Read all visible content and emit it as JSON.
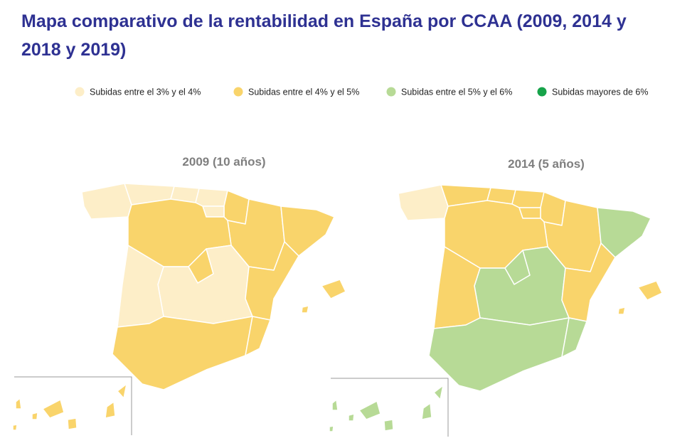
{
  "title": "Mapa comparativo de la rentabilidad en España por CCAA (2009, 2014 y 2018 y 2019)",
  "legend": [
    {
      "label": "Subidas entre el 3% y el 4%",
      "color": "#fdeec8"
    },
    {
      "label": "Subidas entre el 4% y el 5%",
      "color": "#f9d46b"
    },
    {
      "label": "Subidas entre el 5% y el 6%",
      "color": "#b7da96"
    },
    {
      "label": "Subidas mayores de 6%",
      "color": "#17a34a"
    }
  ],
  "maps": [
    {
      "title": "2009 (10 años)",
      "regions": [
        0,
        0,
        0,
        0,
        1,
        0,
        1,
        1,
        1,
        1,
        0,
        1,
        0,
        1,
        1,
        1,
        1
      ]
    },
    {
      "title": "2014 (5 años)",
      "regions": [
        0,
        1,
        1,
        1,
        1,
        1,
        1,
        2,
        1,
        2,
        2,
        1,
        1,
        2,
        2,
        1,
        2
      ]
    }
  ]
}
